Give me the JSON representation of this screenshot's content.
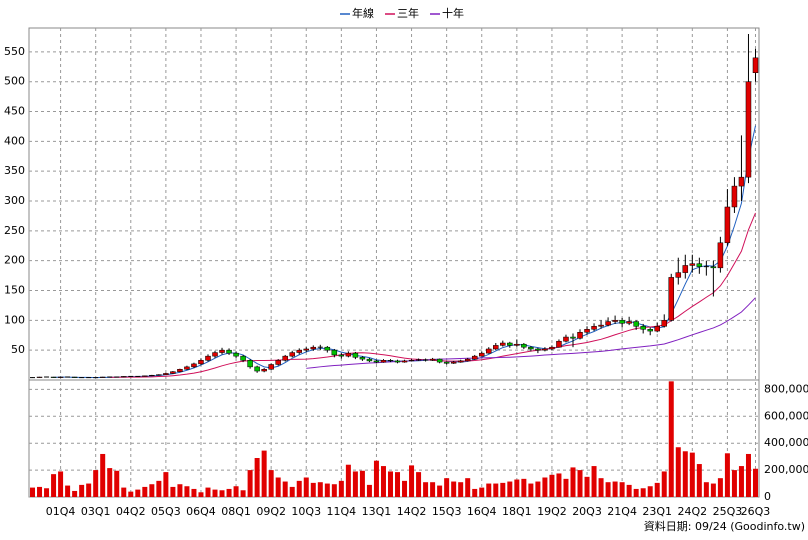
{
  "chart_data": {
    "type": "candlestick",
    "ylim": [
      0,
      590
    ],
    "yticks": [
      50,
      100,
      150,
      200,
      250,
      300,
      350,
      400,
      450,
      500,
      550
    ],
    "grid": true,
    "up_color": "#e00000",
    "down_color": "#00c000",
    "flat_color": "#000000",
    "categories": [
      null,
      null,
      null,
      null,
      "01Q4",
      null,
      null,
      null,
      null,
      "03Q1",
      null,
      null,
      null,
      null,
      "04Q2",
      null,
      null,
      null,
      null,
      "05Q3",
      null,
      null,
      null,
      null,
      "06Q4",
      null,
      null,
      null,
      null,
      "08Q1",
      null,
      null,
      null,
      null,
      "09Q2",
      null,
      null,
      null,
      null,
      "10Q3",
      null,
      null,
      null,
      null,
      "11Q4",
      null,
      null,
      null,
      null,
      "13Q1",
      null,
      null,
      null,
      null,
      "14Q2",
      null,
      null,
      null,
      null,
      "15Q3",
      null,
      null,
      null,
      null,
      "16Q4",
      null,
      null,
      null,
      null,
      "18Q1",
      null,
      null,
      null,
      null,
      "19Q2",
      null,
      null,
      null,
      null,
      "20Q3",
      null,
      null,
      null,
      null,
      "21Q4",
      null,
      null,
      null,
      null,
      "23Q1",
      null,
      null,
      null,
      null,
      "24Q2",
      null,
      null,
      null,
      null,
      "25Q3",
      null,
      null,
      null,
      "26Q3"
    ],
    "ohlc": [
      [
        4,
        4.5,
        3.6,
        4
      ],
      [
        4,
        5.3,
        3.8,
        5
      ],
      [
        5,
        5.5,
        4.5,
        5
      ],
      [
        5,
        5.2,
        3.8,
        4
      ],
      [
        4,
        5.3,
        3.8,
        5
      ],
      [
        5,
        5.4,
        4.6,
        5
      ],
      [
        5,
        5.2,
        3.8,
        4
      ],
      [
        4,
        4.4,
        3.7,
        4
      ],
      [
        4,
        4.4,
        3.7,
        4
      ],
      [
        4,
        4.3,
        3.6,
        4
      ],
      [
        4,
        5.3,
        3.9,
        5
      ],
      [
        5,
        5.4,
        4.7,
        5
      ],
      [
        5,
        5.5,
        4.7,
        5
      ],
      [
        5,
        6.4,
        4.8,
        6
      ],
      [
        6,
        6.5,
        5.6,
        6
      ],
      [
        6,
        6.6,
        5.5,
        6
      ],
      [
        6,
        7.5,
        5.7,
        7
      ],
      [
        7,
        8.6,
        6.6,
        8
      ],
      [
        8,
        9.7,
        7.5,
        9
      ],
      [
        9,
        12,
        8.5,
        11
      ],
      [
        11,
        15,
        10,
        14
      ],
      [
        14,
        19,
        13,
        18
      ],
      [
        18,
        24,
        17,
        22
      ],
      [
        22,
        29,
        20,
        27
      ],
      [
        27,
        36,
        25,
        33
      ],
      [
        33,
        43,
        31,
        40
      ],
      [
        40,
        49,
        37,
        46
      ],
      [
        46,
        54,
        43,
        50
      ],
      [
        50,
        53,
        42,
        45
      ],
      [
        45,
        48,
        37,
        40
      ],
      [
        40,
        42,
        30,
        33
      ],
      [
        33,
        35,
        19,
        22
      ],
      [
        22,
        24,
        12,
        15
      ],
      [
        15,
        20,
        13,
        18
      ],
      [
        18,
        28,
        17,
        26
      ],
      [
        26,
        35,
        24,
        33
      ],
      [
        33,
        42,
        31,
        40
      ],
      [
        40,
        49,
        38,
        46
      ],
      [
        46,
        53,
        43,
        50
      ],
      [
        50,
        55,
        47,
        52
      ],
      [
        52,
        58,
        49,
        55
      ],
      [
        55,
        59,
        50,
        55
      ],
      [
        55,
        57,
        46,
        50
      ],
      [
        50,
        52,
        38,
        42
      ],
      [
        42,
        45,
        36,
        40
      ],
      [
        40,
        48,
        38,
        45
      ],
      [
        45,
        47,
        35,
        38
      ],
      [
        38,
        40,
        32,
        35
      ],
      [
        35,
        37,
        30,
        32
      ],
      [
        32,
        34,
        28,
        30
      ],
      [
        30,
        35,
        29,
        33
      ],
      [
        33,
        35,
        30,
        32
      ],
      [
        32,
        34,
        28,
        30
      ],
      [
        30,
        34,
        29,
        32
      ],
      [
        32,
        35,
        31,
        33
      ],
      [
        33,
        36,
        32,
        34
      ],
      [
        34,
        36,
        31,
        33
      ],
      [
        33,
        37,
        32,
        35
      ],
      [
        35,
        36,
        28,
        30
      ],
      [
        30,
        31,
        26,
        28
      ],
      [
        28,
        32,
        27,
        30
      ],
      [
        30,
        34,
        29,
        32
      ],
      [
        32,
        37,
        31,
        35
      ],
      [
        35,
        42,
        34,
        40
      ],
      [
        40,
        48,
        39,
        45
      ],
      [
        45,
        55,
        44,
        52
      ],
      [
        52,
        62,
        50,
        58
      ],
      [
        58,
        66,
        56,
        62
      ],
      [
        62,
        64,
        54,
        58
      ],
      [
        58,
        68,
        56,
        60
      ],
      [
        60,
        62,
        52,
        55
      ],
      [
        55,
        57,
        48,
        52
      ],
      [
        52,
        54,
        45,
        50
      ],
      [
        50,
        55,
        48,
        52
      ],
      [
        52,
        58,
        50,
        55
      ],
      [
        55,
        68,
        54,
        65
      ],
      [
        65,
        76,
        63,
        72
      ],
      [
        72,
        78,
        55,
        70
      ],
      [
        70,
        85,
        68,
        80
      ],
      [
        80,
        90,
        76,
        85
      ],
      [
        85,
        95,
        82,
        90
      ],
      [
        90,
        100,
        86,
        92
      ],
      [
        92,
        105,
        90,
        98
      ],
      [
        98,
        108,
        94,
        100
      ],
      [
        100,
        104,
        88,
        95
      ],
      [
        95,
        106,
        92,
        98
      ],
      [
        98,
        100,
        84,
        90
      ],
      [
        90,
        94,
        78,
        85
      ],
      [
        85,
        88,
        75,
        82
      ],
      [
        82,
        96,
        80,
        90
      ],
      [
        90,
        110,
        88,
        100
      ],
      [
        100,
        178,
        98,
        172
      ],
      [
        172,
        205,
        160,
        180
      ],
      [
        180,
        210,
        170,
        192
      ],
      [
        192,
        210,
        180,
        195
      ],
      [
        195,
        205,
        178,
        190
      ],
      [
        190,
        200,
        175,
        190
      ],
      [
        190,
        200,
        140,
        188
      ],
      [
        188,
        240,
        180,
        230
      ],
      [
        230,
        320,
        225,
        290
      ],
      [
        290,
        340,
        280,
        325
      ],
      [
        325,
        410,
        300,
        340
      ],
      [
        340,
        580,
        330,
        500
      ],
      [
        515,
        555,
        500,
        540
      ]
    ],
    "series": [
      {
        "name": "年線",
        "color": "#2060c0",
        "values": [
          null,
          null,
          null,
          4.5,
          4.8,
          4.8,
          4.5,
          4.5,
          4.3,
          4,
          4.3,
          4.5,
          4.8,
          5.3,
          5.5,
          5.8,
          6.3,
          6.8,
          7.5,
          8.8,
          10.5,
          13,
          16.3,
          20.3,
          25,
          30.5,
          36.5,
          42.3,
          45.3,
          45.3,
          42,
          35,
          27.5,
          22,
          20.3,
          23,
          29.3,
          36.3,
          42.3,
          47,
          50.8,
          53,
          53,
          50.5,
          46.8,
          44.3,
          41.3,
          39.5,
          37.5,
          33.8,
          32.5,
          31.8,
          31.3,
          31.8,
          31.8,
          32.3,
          33,
          33.8,
          32.8,
          31.5,
          30.8,
          30,
          31.3,
          34.3,
          38,
          43,
          48.8,
          54.3,
          57.5,
          59.5,
          58.8,
          56.3,
          54.3,
          52.3,
          52.3,
          55.5,
          61,
          65.5,
          71.8,
          76.8,
          81.3,
          86.8,
          91.3,
          95,
          96.3,
          97.8,
          95.8,
          92,
          88.8,
          86.8,
          89.3,
          111,
          135.5,
          161,
          184.8,
          189.3,
          191.8,
          190.8,
          199.5,
          224.5,
          258.3,
          296.3,
          371.3,
          426.3
        ]
      },
      {
        "name": "三年",
        "color": "#d0105a",
        "values": [
          null,
          null,
          null,
          null,
          null,
          null,
          null,
          null,
          null,
          null,
          null,
          4.5,
          4.6,
          4.7,
          4.8,
          4.9,
          5.1,
          5.3,
          5.8,
          6.3,
          7.2,
          8.3,
          9.8,
          11.6,
          13.9,
          16.8,
          20.1,
          23.8,
          26.9,
          29.6,
          31.6,
          32.5,
          32.6,
          32.6,
          32.9,
          33.4,
          34,
          34.5,
          34.8,
          35,
          35.8,
          37.1,
          38.5,
          40.2,
          42.3,
          44.5,
          45.5,
          45.7,
          45,
          43.7,
          42.3,
          40.6,
          38.5,
          36.6,
          35.2,
          34.5,
          33.9,
          33.1,
          32.3,
          31.8,
          31.7,
          31.8,
          31.9,
          32.7,
          33.9,
          35.6,
          37.6,
          40,
          42.1,
          44.2,
          46.3,
          48.3,
          49.9,
          51.6,
          53.3,
          55.3,
          57.6,
          59.1,
          60.9,
          62.8,
          65.5,
          68.2,
          71.8,
          75.8,
          79.5,
          83.3,
          86.3,
          87.9,
          88.8,
          90.4,
          92.1,
          99.3,
          106.8,
          115.2,
          123.3,
          130.8,
          138.7,
          146.2,
          157.8,
          174.9,
          195.2,
          216,
          251.8,
          280
        ]
      },
      {
        "name": "十年",
        "color": "#8020c0",
        "values": [
          null,
          null,
          null,
          null,
          null,
          null,
          null,
          null,
          null,
          null,
          null,
          null,
          null,
          null,
          null,
          null,
          null,
          null,
          null,
          null,
          null,
          null,
          null,
          null,
          null,
          null,
          null,
          null,
          null,
          null,
          null,
          null,
          null,
          null,
          null,
          null,
          null,
          null,
          null,
          19.6,
          20.8,
          22.1,
          23.2,
          24.2,
          25,
          26,
          26.9,
          27.7,
          28.4,
          29,
          29.7,
          30.4,
          31,
          31.7,
          32.3,
          33,
          33.7,
          34.4,
          34.9,
          35.3,
          35.7,
          36,
          36.4,
          36.7,
          37,
          37.3,
          37.6,
          37.9,
          38.2,
          38.7,
          39.3,
          40,
          40.9,
          41.8,
          42.5,
          43.3,
          44.1,
          44.7,
          45.4,
          46.3,
          47.1,
          48,
          49.3,
          50.7,
          52.1,
          53.4,
          54.7,
          56,
          57.2,
          58.7,
          60.4,
          63.9,
          67.6,
          71.6,
          75.7,
          79.6,
          83.5,
          87.3,
          92.3,
          98.9,
          106.3,
          114,
          125.6,
          138
        ]
      }
    ],
    "volume": {
      "color": "#e00000",
      "ylim": [
        0,
        870000
      ],
      "yticks": [
        0,
        {
          "value": 200000,
          "label": "200,000"
        },
        {
          "value": 400000,
          "label": "400,000"
        },
        {
          "value": 600000,
          "label": "600,000"
        },
        {
          "value": 800000,
          "label": "800,000"
        }
      ],
      "values": [
        70000,
        75000,
        65000,
        170000,
        190000,
        85000,
        45000,
        90000,
        100000,
        200000,
        320000,
        215000,
        195000,
        70000,
        40000,
        55000,
        75000,
        95000,
        120000,
        185000,
        75000,
        95000,
        80000,
        60000,
        35000,
        70000,
        55000,
        50000,
        60000,
        80000,
        50000,
        200000,
        290000,
        345000,
        200000,
        145000,
        115000,
        75000,
        120000,
        145000,
        105000,
        110000,
        100000,
        95000,
        120000,
        240000,
        190000,
        195000,
        90000,
        270000,
        230000,
        190000,
        185000,
        120000,
        235000,
        185000,
        110000,
        110000,
        85000,
        140000,
        115000,
        110000,
        140000,
        60000,
        70000,
        100000,
        100000,
        105000,
        115000,
        130000,
        135000,
        100000,
        115000,
        145000,
        165000,
        175000,
        135000,
        220000,
        200000,
        150000,
        230000,
        140000,
        110000,
        115000,
        110000,
        90000,
        60000,
        65000,
        80000,
        105000,
        190000,
        860000,
        370000,
        340000,
        330000,
        245000,
        110000,
        100000,
        140000,
        325000,
        200000,
        230000,
        320000,
        210000
      ]
    },
    "note": "資料日期: 09/24 (Goodinfo.tw)"
  }
}
